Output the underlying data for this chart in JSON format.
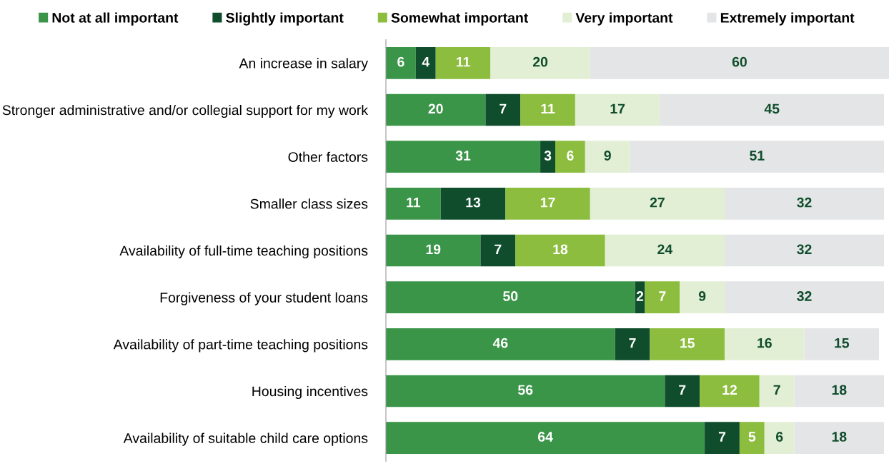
{
  "chart_data": {
    "type": "bar",
    "orientation": "horizontal",
    "stacked": true,
    "data_labels": true,
    "legend": "top",
    "grid": false,
    "tick_labels": "y",
    "categories": [
      "An increase in salary",
      "Stronger administrative and/or collegial support for my work",
      "Other factors",
      "Smaller class sizes",
      "Availability of full-time teaching positions",
      "Forgiveness of your student loans",
      "Availability of part-time teaching positions",
      "Housing incentives",
      "Availability of suitable child care options"
    ],
    "series": [
      {
        "name": "Not at all important",
        "color": "#3a9548",
        "values": [
          6,
          20,
          31,
          11,
          19,
          50,
          46,
          56,
          64
        ]
      },
      {
        "name": "Slightly important",
        "color": "#0f4d2c",
        "values": [
          4,
          7,
          3,
          13,
          7,
          2,
          7,
          7,
          7
        ]
      },
      {
        "name": "Somewhat important",
        "color": "#8cbd3f",
        "values": [
          11,
          11,
          6,
          17,
          18,
          7,
          15,
          12,
          5
        ]
      },
      {
        "name": "Very important",
        "color": "#e2efd5",
        "values": [
          20,
          17,
          9,
          27,
          24,
          9,
          16,
          7,
          6
        ]
      },
      {
        "name": "Extremely important",
        "color": "#e4e5e6",
        "values": [
          60,
          45,
          51,
          32,
          32,
          32,
          15,
          18,
          18
        ]
      }
    ]
  }
}
